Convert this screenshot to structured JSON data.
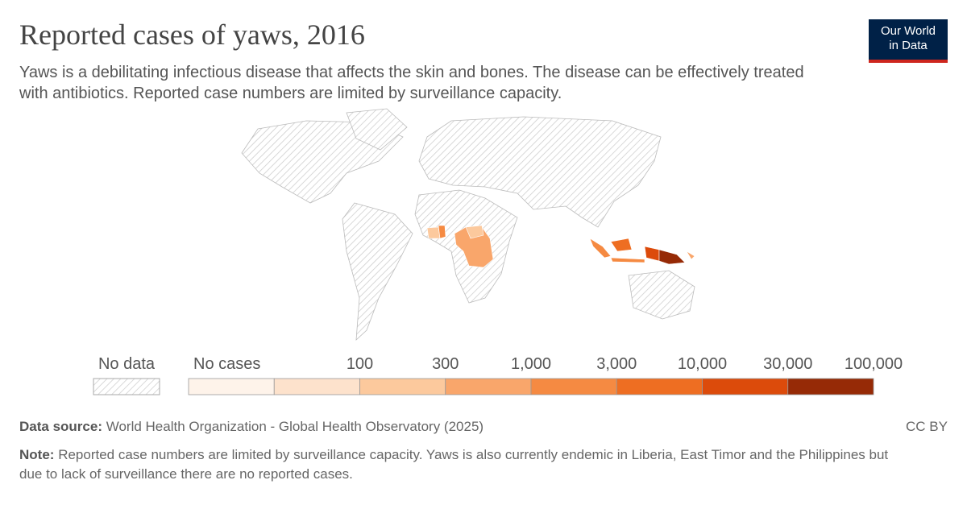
{
  "header": {
    "title": "Reported cases of yaws, 2016",
    "subtitle": "Yaws is a debilitating infectious disease that affects the skin and bones. The disease can be effectively treated with antibiotics. Reported case numbers are limited by surveillance capacity.",
    "logo": [
      "Our World",
      "in Data"
    ]
  },
  "legend": {
    "no_data": "No data",
    "no_cases": "No cases",
    "ticks": [
      "100",
      "300",
      "1,000",
      "3,000",
      "10,000",
      "30,000",
      "100,000"
    ],
    "colors": [
      "#fef3ea",
      "#fde2cc",
      "#fcc99d",
      "#f9a66b",
      "#f58a42",
      "#ee6e22",
      "#dc4b0b",
      "#962a06"
    ]
  },
  "footer": {
    "source_label": "Data source:",
    "source": "World Health Organization - Global Health Observatory (2025)",
    "license": "CC BY",
    "note_label": "Note:",
    "note": "Reported case numbers are limited by surveillance capacity. Yaws is also currently endemic in Liberia, East Timor and the Philippines but due to lack of surveillance there are no reported cases."
  }
}
